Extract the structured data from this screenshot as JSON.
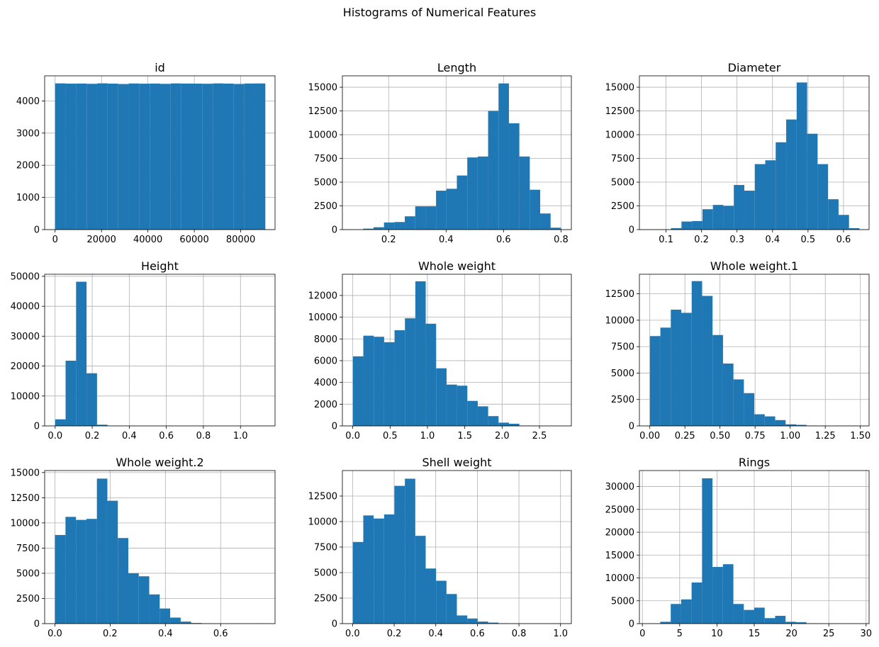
{
  "figure": {
    "suptitle": "Histograms of Numerical Features"
  },
  "colors": {
    "bar": "#1f77b4",
    "grid": "#b0b0b0",
    "axis": "#000000",
    "background": "#ffffff"
  },
  "chart_data": [
    {
      "type": "bar",
      "title": "id",
      "grid": true,
      "xlim": [
        -4500,
        94800
      ],
      "ylim": [
        0,
        4780
      ],
      "xticks": [
        0,
        20000,
        40000,
        60000,
        80000
      ],
      "xtick_labels": [
        "0",
        "20000",
        "40000",
        "60000",
        "80000"
      ],
      "yticks": [
        0,
        1000,
        2000,
        3000,
        4000
      ],
      "ytick_labels": [
        "0",
        "1000",
        "2000",
        "3000",
        "4000"
      ],
      "bin_start": 0,
      "bin_width": 4530.75,
      "values": [
        4545,
        4538,
        4540,
        4532,
        4546,
        4538,
        4526,
        4542,
        4536,
        4540,
        4531,
        4544,
        4540,
        4538,
        4534,
        4545,
        4539,
        4528,
        4541,
        4543
      ]
    },
    {
      "type": "bar",
      "title": "Length",
      "grid": true,
      "xlim": [
        0.039,
        0.836
      ],
      "ylim": [
        0,
        16200
      ],
      "xticks": [
        0.2,
        0.4,
        0.6,
        0.8
      ],
      "xtick_labels": [
        "0.2",
        "0.4",
        "0.6",
        "0.8"
      ],
      "yticks": [
        0,
        2500,
        5000,
        7500,
        10000,
        12500,
        15000
      ],
      "ytick_labels": [
        "0",
        "2500",
        "5000",
        "7500",
        "10000",
        "12500",
        "15000"
      ],
      "bin_start": 0.075,
      "bin_width": 0.03625,
      "values": [
        0,
        100,
        250,
        750,
        800,
        1400,
        2450,
        2450,
        4100,
        4300,
        5700,
        7600,
        7700,
        12500,
        15400,
        11200,
        7700,
        4200,
        1700,
        200
      ]
    },
    {
      "type": "bar",
      "title": "Diameter",
      "grid": true,
      "xlim": [
        0.025,
        0.672
      ],
      "ylim": [
        0,
        16200
      ],
      "xticks": [
        0.1,
        0.2,
        0.3,
        0.4,
        0.5,
        0.6
      ],
      "xtick_labels": [
        "0.1",
        "0.2",
        "0.3",
        "0.4",
        "0.5",
        "0.6"
      ],
      "yticks": [
        0,
        2500,
        5000,
        7500,
        10000,
        12500,
        15000
      ],
      "ytick_labels": [
        "0",
        "2500",
        "5000",
        "7500",
        "10000",
        "12500",
        "15000"
      ],
      "bin_start": 0.055,
      "bin_width": 0.0295,
      "values": [
        0,
        0,
        150,
        850,
        900,
        2150,
        2600,
        2500,
        4700,
        4100,
        6900,
        7300,
        9200,
        11600,
        15500,
        10100,
        6900,
        3200,
        1550,
        150
      ]
    },
    {
      "type": "bar",
      "title": "Height",
      "grid": true,
      "xlim": [
        -0.0565,
        1.1865
      ],
      "ylim": [
        0,
        50700
      ],
      "xticks": [
        0,
        0.2,
        0.4,
        0.6,
        0.8,
        1.0
      ],
      "xtick_labels": [
        "0.0",
        "0.2",
        "0.4",
        "0.6",
        "0.8",
        "1.0"
      ],
      "yticks": [
        0,
        10000,
        20000,
        30000,
        40000,
        50000
      ],
      "ytick_labels": [
        "0",
        "10000",
        "20000",
        "30000",
        "40000",
        "50000"
      ],
      "bin_start": 0,
      "bin_width": 0.0565,
      "values": [
        2200,
        21800,
        48200,
        17600,
        400,
        50,
        20,
        10,
        0,
        0,
        0,
        0,
        0,
        0,
        0,
        0,
        0,
        0,
        0,
        10
      ]
    },
    {
      "type": "bar",
      "title": "Whole weight",
      "grid": true,
      "xlim": [
        -0.139,
        2.927
      ],
      "ylim": [
        0,
        13950
      ],
      "xticks": [
        0,
        0.5,
        1.0,
        1.5,
        2.0,
        2.5
      ],
      "xtick_labels": [
        "0.0",
        "0.5",
        "1.0",
        "1.5",
        "2.0",
        "2.5"
      ],
      "yticks": [
        0,
        2000,
        4000,
        6000,
        8000,
        10000,
        12000
      ],
      "ytick_labels": [
        "0",
        "2000",
        "4000",
        "6000",
        "8000",
        "10000",
        "12000"
      ],
      "bin_start": 0.002,
      "bin_width": 0.1393,
      "values": [
        6400,
        8300,
        8200,
        7700,
        8800,
        9900,
        13300,
        9400,
        5300,
        3800,
        3700,
        2300,
        1800,
        900,
        300,
        200,
        30,
        10,
        0,
        0
      ]
    },
    {
      "type": "bar",
      "title": "Whole weight.1",
      "grid": true,
      "xlim": [
        -0.074,
        1.562
      ],
      "ylim": [
        0,
        14350
      ],
      "xticks": [
        0,
        0.25,
        0.5,
        0.75,
        1.0,
        1.25,
        1.5
      ],
      "xtick_labels": [
        "0.00",
        "0.25",
        "0.50",
        "0.75",
        "1.00",
        "1.25",
        "1.50"
      ],
      "yticks": [
        0,
        2500,
        5000,
        7500,
        10000,
        12500
      ],
      "ytick_labels": [
        "0",
        "2500",
        "5000",
        "7500",
        "10000",
        "12500"
      ],
      "bin_start": 0.001,
      "bin_width": 0.07435,
      "values": [
        8500,
        9300,
        11000,
        10700,
        13700,
        12300,
        8600,
        5900,
        4400,
        3100,
        1100,
        900,
        550,
        150,
        100,
        30,
        10,
        0,
        0,
        10
      ]
    },
    {
      "type": "bar",
      "title": "Whole weight.2",
      "grid": true,
      "xlim": [
        -0.037,
        0.797
      ],
      "ylim": [
        0,
        15200
      ],
      "xticks": [
        0,
        0.2,
        0.4,
        0.6
      ],
      "xtick_labels": [
        "0.0",
        "0.2",
        "0.4",
        "0.6"
      ],
      "yticks": [
        0,
        2500,
        5000,
        7500,
        10000,
        12500,
        15000
      ],
      "ytick_labels": [
        "0",
        "2500",
        "5000",
        "7500",
        "10000",
        "12500",
        "15000"
      ],
      "bin_start": 0.0005,
      "bin_width": 0.0379,
      "values": [
        8800,
        10600,
        10300,
        10400,
        14400,
        12200,
        8500,
        5000,
        4700,
        2900,
        1500,
        600,
        200,
        60,
        20,
        0,
        0,
        0,
        0,
        10
      ]
    },
    {
      "type": "bar",
      "title": "Shell weight",
      "grid": true,
      "xlim": [
        -0.049,
        1.052
      ],
      "ylim": [
        0,
        15000
      ],
      "xticks": [
        0,
        0.2,
        0.4,
        0.6,
        0.8,
        1.0
      ],
      "xtick_labels": [
        "0.0",
        "0.2",
        "0.4",
        "0.6",
        "0.8",
        "1.0"
      ],
      "yticks": [
        0,
        2500,
        5000,
        7500,
        10000,
        12500
      ],
      "ytick_labels": [
        "0",
        "2500",
        "5000",
        "7500",
        "10000",
        "12500"
      ],
      "bin_start": 0.0015,
      "bin_width": 0.05,
      "values": [
        8000,
        10600,
        10300,
        10700,
        13500,
        14200,
        8600,
        5400,
        4200,
        2900,
        800,
        500,
        200,
        100,
        30,
        10,
        0,
        0,
        0,
        10
      ]
    },
    {
      "type": "bar",
      "title": "Rings",
      "grid": true,
      "xlim": [
        -0.4,
        30.4
      ],
      "ylim": [
        0,
        33500
      ],
      "xticks": [
        0,
        5,
        10,
        15,
        20,
        25,
        30
      ],
      "xtick_labels": [
        "0",
        "5",
        "10",
        "15",
        "20",
        "25",
        "30"
      ],
      "yticks": [
        0,
        5000,
        10000,
        15000,
        20000,
        25000,
        30000
      ],
      "ytick_labels": [
        "0",
        "5000",
        "10000",
        "15000",
        "20000",
        "25000",
        "30000"
      ],
      "bin_start": 1,
      "bin_width": 1.4,
      "values": [
        50,
        400,
        4300,
        5300,
        9000,
        31800,
        12400,
        13000,
        4300,
        3000,
        3500,
        1200,
        1700,
        400,
        300,
        50,
        20,
        10,
        0,
        10
      ]
    }
  ]
}
